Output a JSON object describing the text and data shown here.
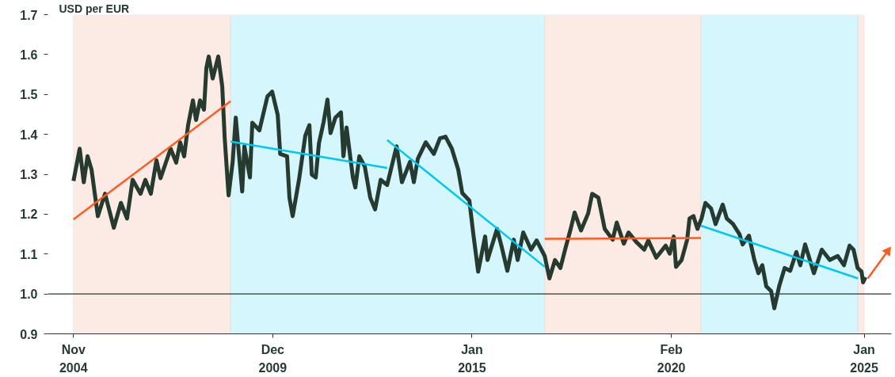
{
  "chart_data": {
    "type": "line",
    "ylabel": "USD per EUR",
    "xlim": [
      "2004-03-08",
      "2025-09-12"
    ],
    "xticks": [
      {
        "value": "2004-11-01",
        "label": "Nov\n2004"
      },
      {
        "value": "2009-12-01",
        "label": "Dec\n2009"
      },
      {
        "value": "2015-01-01",
        "label": "Jan\n2015"
      },
      {
        "value": "2020-02-01",
        "label": "Feb\n2020"
      },
      {
        "value": "2025-01-01",
        "label": "Jan\n2025"
      }
    ],
    "ylim": [
      0.9,
      1.7
    ],
    "yticks": [
      0.9,
      {
        "value": 1,
        "label": "1.0"
      },
      1.1,
      1.2,
      1.3,
      1.4,
      1.5,
      1.6,
      1.7
    ],
    "grid": false,
    "line_style": "solid",
    "marker": "none",
    "bands": [
      {
        "axis": "x",
        "from": "2004-11-01",
        "to": "2008-11-04",
        "color": "#fcebe4"
      },
      {
        "axis": "x",
        "from": "2008-11-04",
        "to": "2016-11-08",
        "color": "#d4f6fc"
      },
      {
        "axis": "x",
        "from": "2016-11-08",
        "to": "2020-11-03",
        "color": "#fcebe4"
      },
      {
        "axis": "x",
        "from": "2020-11-03",
        "to": "2024-11-05",
        "color": "#d4f6fc"
      },
      {
        "axis": "x",
        "from": "2024-11-05",
        "to": "2025-01-01",
        "color": "#fcebe4"
      }
    ],
    "ref_lines": [
      {
        "axis": "y",
        "value": 1.0,
        "color": "#263a30"
      }
    ],
    "series": [
      {
        "color": "#263a30",
        "x": [
          "2004-11-01",
          "2004-12-29",
          "2005-02-05",
          "2005-03-12",
          "2005-04-18",
          "2005-06-16",
          "2005-08-22",
          "2005-11-12",
          "2006-01-17",
          "2006-03-15",
          "2006-05-06",
          "2006-07-19",
          "2006-09-02",
          "2006-10-23",
          "2006-12-14",
          "2007-01-21",
          "2007-04-25",
          "2007-06-16",
          "2007-07-23",
          "2007-08-29",
          "2007-10-05",
          "2007-11-19",
          "2007-12-18",
          "2008-01-24",
          "2008-03-01",
          "2008-03-23",
          "2008-04-14",
          "2008-05-21",
          "2008-07-12",
          "2008-08-18",
          "2008-09-10",
          "2008-10-16",
          "2008-11-23",
          "2008-12-22",
          "2009-02-20",
          "2009-03-12",
          "2009-05-03",
          "2009-05-25",
          "2009-07-30",
          "2009-10-13",
          "2009-11-26",
          "2010-01-17",
          "2010-02-09",
          "2010-04-14",
          "2010-05-06",
          "2010-06-05",
          "2010-08-03",
          "2010-10-01",
          "2010-11-08",
          "2010-11-30",
          "2011-01-06",
          "2011-02-05",
          "2011-03-19",
          "2011-04-25",
          "2011-05-24",
          "2011-07-08",
          "2011-08-29",
          "2011-09-21",
          "2011-10-20",
          "2011-12-18",
          "2012-01-10",
          "2012-02-16",
          "2012-04-07",
          "2012-05-28",
          "2012-07-12",
          "2012-09-02",
          "2012-11-01",
          "2013-01-28",
          "2013-03-19",
          "2013-06-02",
          "2013-07-08",
          "2013-08-14",
          "2013-10-27",
          "2014-01-10",
          "2014-03-08",
          "2014-04-29",
          "2014-06-27",
          "2014-08-25",
          "2014-10-02",
          "2014-12-07",
          "2015-01-13",
          "2015-02-27",
          "2015-05-03",
          "2015-05-25",
          "2015-08-22",
          "2015-10-05",
          "2015-11-26",
          "2016-01-25",
          "2016-03-01",
          "2016-04-22",
          "2016-07-04",
          "2016-08-25",
          "2016-11-08",
          "2016-12-22",
          "2017-02-12",
          "2017-04-03",
          "2017-05-17",
          "2017-07-08",
          "2017-08-14",
          "2017-10-12",
          "2017-12-18",
          "2018-01-24",
          "2018-03-23",
          "2018-05-21",
          "2018-08-03",
          "2018-09-10",
          "2018-11-15",
          "2018-12-29",
          "2019-03-12",
          "2019-05-24",
          "2019-07-01",
          "2019-09-13",
          "2019-12-10",
          "2020-01-17",
          "2020-02-23",
          "2020-03-15",
          "2020-05-06",
          "2020-06-27",
          "2020-07-19",
          "2020-08-25",
          "2020-10-01",
          "2020-11-08",
          "2020-12-14",
          "2021-02-05",
          "2021-03-19",
          "2021-05-24",
          "2021-07-01",
          "2021-08-29",
          "2021-10-27",
          "2021-11-26",
          "2022-01-24",
          "2022-03-15",
          "2022-04-22",
          "2022-05-28",
          "2022-07-04",
          "2022-08-18",
          "2022-09-17",
          "2022-11-01",
          "2022-12-22",
          "2023-02-12",
          "2023-04-10",
          "2023-05-17",
          "2023-07-01",
          "2023-09-21",
          "2023-12-03",
          "2024-02-16",
          "2024-04-29",
          "2024-06-27",
          "2024-08-18",
          "2024-09-24",
          "2024-11-01",
          "2024-12-07",
          "2024-12-22",
          "2025-01-13"
        ],
        "values": [
          1.283,
          1.364,
          1.28,
          1.345,
          1.312,
          1.195,
          1.251,
          1.166,
          1.228,
          1.189,
          1.286,
          1.251,
          1.286,
          1.251,
          1.335,
          1.29,
          1.364,
          1.329,
          1.38,
          1.345,
          1.423,
          1.485,
          1.436,
          1.485,
          1.462,
          1.566,
          1.595,
          1.54,
          1.595,
          1.52,
          1.39,
          1.247,
          1.331,
          1.442,
          1.257,
          1.37,
          1.292,
          1.429,
          1.41,
          1.495,
          1.507,
          1.448,
          1.351,
          1.345,
          1.241,
          1.195,
          1.286,
          1.397,
          1.423,
          1.299,
          1.292,
          1.378,
          1.429,
          1.487,
          1.403,
          1.442,
          1.455,
          1.345,
          1.417,
          1.292,
          1.267,
          1.345,
          1.319,
          1.241,
          1.212,
          1.286,
          1.273,
          1.37,
          1.28,
          1.331,
          1.28,
          1.339,
          1.38,
          1.351,
          1.39,
          1.394,
          1.364,
          1.312,
          1.253,
          1.234,
          1.15,
          1.056,
          1.144,
          1.085,
          1.163,
          1.117,
          1.058,
          1.136,
          1.085,
          1.154,
          1.111,
          1.134,
          1.095,
          1.039,
          1.085,
          1.065,
          1.111,
          1.163,
          1.204,
          1.159,
          1.202,
          1.251,
          1.241,
          1.163,
          1.136,
          1.179,
          1.126,
          1.154,
          1.13,
          1.111,
          1.134,
          1.091,
          1.121,
          1.101,
          1.144,
          1.068,
          1.085,
          1.136,
          1.189,
          1.195,
          1.163,
          1.189,
          1.228,
          1.214,
          1.175,
          1.224,
          1.189,
          1.175,
          1.15,
          1.124,
          1.146,
          1.085,
          1.052,
          1.072,
          1.019,
          1.007,
          0.964,
          1.019,
          1.065,
          1.058,
          1.105,
          1.072,
          1.124,
          1.052,
          1.111,
          1.085,
          1.095,
          1.072,
          1.121,
          1.111,
          1.065,
          1.056,
          1.029,
          1.042
        ]
      },
      {
        "color": "#ff5a1f",
        "x": [
          "2004-11-01",
          "2008-11-04"
        ],
        "values": [
          1.187,
          1.483
        ]
      },
      {
        "color": "#00c8f0",
        "x": [
          "2008-11-04",
          "2012-11-01"
        ],
        "values": [
          1.382,
          1.316
        ]
      },
      {
        "color": "#00c8f0",
        "x": [
          "2012-11-01",
          "2016-11-08"
        ],
        "values": [
          1.386,
          1.068
        ]
      },
      {
        "color": "#ff5a1f",
        "x": [
          "2016-11-08",
          "2020-11-03"
        ],
        "values": [
          1.138,
          1.14
        ]
      },
      {
        "color": "#00c8f0",
        "x": [
          "2020-11-03",
          "2024-11-05"
        ],
        "values": [
          1.171,
          1.039
        ]
      },
      {
        "color": "#ff5a1f",
        "marker": "triangle",
        "x": [
          "2025-02-04",
          "2025-08-07"
        ],
        "values": [
          1.039,
          1.107
        ]
      }
    ]
  }
}
